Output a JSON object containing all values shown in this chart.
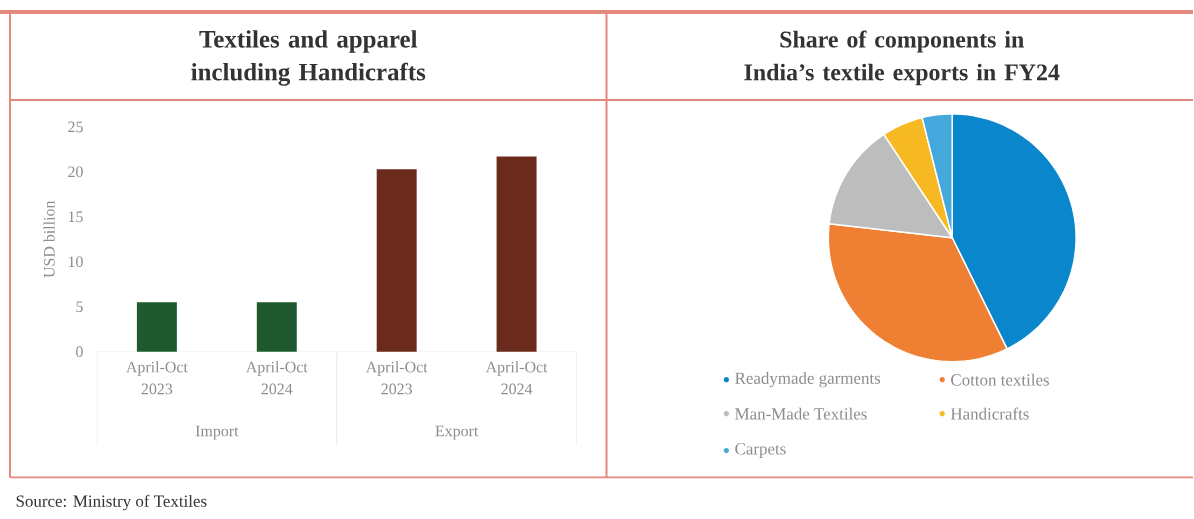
{
  "chart_data": [
    {
      "type": "bar",
      "title": "Textiles and apparel including Handicrafts",
      "ylabel": "USD billion",
      "categories": [
        "April-Oct 2023",
        "April-Oct 2024",
        "April-Oct 2023",
        "April-Oct 2024"
      ],
      "values": [
        5.5,
        5.5,
        20.3,
        21.7
      ],
      "colors": [
        "#1e5a2e",
        "#1e5a2e",
        "#6a2a1c",
        "#6a2a1c"
      ],
      "ylim": [
        0,
        25
      ],
      "yticks": [
        0,
        5,
        10,
        15,
        20,
        25
      ],
      "grid": false,
      "annotations": [
        "Import",
        "Export",
        "Source: Ministry of Textiles"
      ]
    },
    {
      "type": "pie",
      "title": "Share of components in India’s textile exports in FY24",
      "categories": [
        "Readymade garments",
        "Cotton textiles",
        "Man-Made Textiles",
        "Handicrafts",
        "Carpets"
      ],
      "values": [
        42.7,
        34.1,
        13.9,
        5.4,
        3.9
      ],
      "colors": [
        "#0a86cc",
        "#ee7f33",
        "#bdbdbd",
        "#f7b922",
        "#45a8dc"
      ],
      "legend": "bottom"
    }
  ]
}
